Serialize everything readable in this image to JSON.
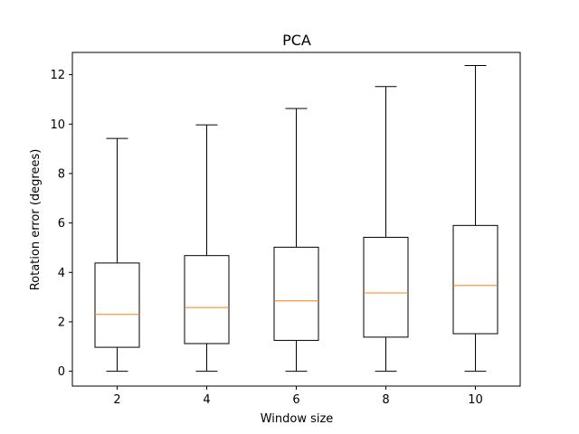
{
  "chart_data": {
    "type": "box",
    "title": "PCA",
    "xlabel": "Window size",
    "ylabel": "Rotation error (degrees)",
    "ylim": [
      -0.6,
      12.9
    ],
    "yticks": [
      0,
      2,
      4,
      6,
      8,
      10,
      12
    ],
    "categories": [
      "2",
      "4",
      "6",
      "8",
      "10"
    ],
    "boxes": [
      {
        "category": "2",
        "whisker_low": 0,
        "q1": 0.97,
        "median": 2.3,
        "q3": 4.38,
        "whisker_high": 9.42
      },
      {
        "category": "4",
        "whisker_low": 0,
        "q1": 1.12,
        "median": 2.58,
        "q3": 4.68,
        "whisker_high": 9.97
      },
      {
        "category": "6",
        "whisker_low": 0,
        "q1": 1.25,
        "median": 2.85,
        "q3": 5.02,
        "whisker_high": 10.63
      },
      {
        "category": "8",
        "whisker_low": 0,
        "q1": 1.38,
        "median": 3.17,
        "q3": 5.42,
        "whisker_high": 11.52
      },
      {
        "category": "10",
        "whisker_low": 0,
        "q1": 1.52,
        "median": 3.47,
        "q3": 5.9,
        "whisker_high": 12.37
      }
    ],
    "grid": false,
    "colors": {
      "box": "#000000",
      "median": "#ff7f0e",
      "background": "#ffffff"
    }
  }
}
